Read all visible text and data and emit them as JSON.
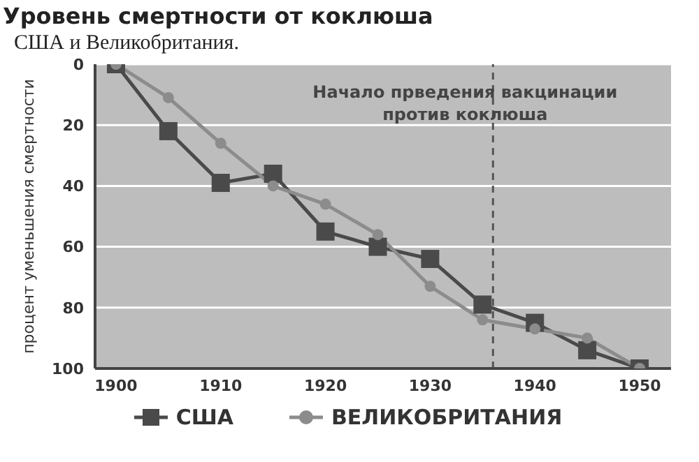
{
  "chart_data": {
    "type": "line",
    "title": "Уровень смертности от коклюша",
    "subtitle": "США и Великобритания.",
    "ylabel": "процент уменьшения смертности",
    "x": [
      1900,
      1905,
      1910,
      1915,
      1920,
      1925,
      1930,
      1935,
      1940,
      1945,
      1950
    ],
    "series": [
      {
        "name": "США",
        "color": "#4a4a4a",
        "marker": "square",
        "values": [
          0,
          22,
          39,
          36,
          55,
          60,
          64,
          79,
          85,
          94,
          100
        ]
      },
      {
        "name": "ВЕЛИКОБРИТАНИЯ",
        "color": "#8c8c8c",
        "marker": "circle",
        "values": [
          0,
          11,
          26,
          40,
          46,
          56,
          73,
          84,
          87,
          90,
          100
        ]
      }
    ],
    "xlim": [
      1898,
      1953
    ],
    "xticks": [
      1900,
      1910,
      1920,
      1930,
      1940,
      1950
    ],
    "ylim": [
      100,
      0
    ],
    "yticks": [
      0,
      20,
      40,
      60,
      80,
      100
    ],
    "grid": "y",
    "legend": "bottom",
    "line_style": "solid",
    "ref_lines": [
      {
        "axis": "x",
        "value": 1936,
        "label": "Начало прведения вакцинации против коклюша",
        "line_style": "dashed",
        "color": "#555555"
      }
    ]
  }
}
